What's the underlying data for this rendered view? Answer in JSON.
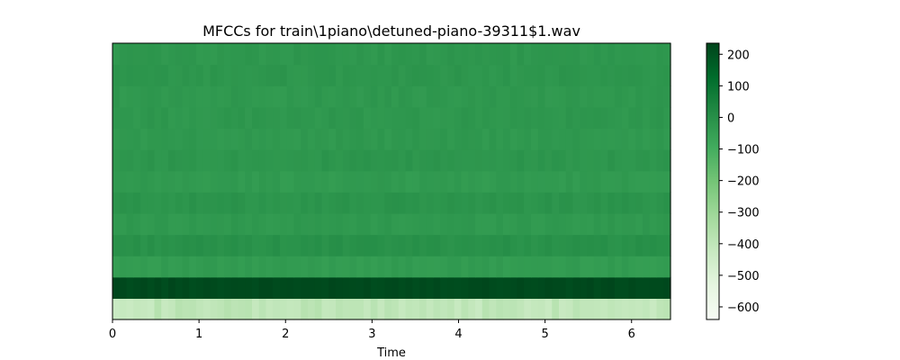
{
  "chart_data": {
    "type": "heatmap",
    "title": "MFCCs for train\\1piano\\detuned-piano-39311$1.wav",
    "xlabel": "Time",
    "ylabel": "",
    "x_ticks": [
      0,
      1,
      2,
      3,
      4,
      5,
      6
    ],
    "x_tick_labels": [
      "0",
      "1",
      "2",
      "3",
      "4",
      "5",
      "6"
    ],
    "xlim": [
      0,
      6.45
    ],
    "n_coefficients": 13,
    "colormap": "Greens",
    "colorbar": {
      "vmin": -640,
      "vmax": 235,
      "ticks": [
        200,
        100,
        0,
        -100,
        -200,
        -300,
        -400,
        -500,
        -600
      ],
      "tick_labels": [
        "200",
        "100",
        "0",
        "−100",
        "−200",
        "−300",
        "−400",
        "−500",
        "−600"
      ]
    },
    "coefficient_values": [
      {
        "coefficient": 1,
        "value": -400
      },
      {
        "coefficient": 2,
        "value": 220
      },
      {
        "coefficient": 3,
        "value": -40
      },
      {
        "coefficient": 4,
        "value": -5
      },
      {
        "coefficient": 5,
        "value": -30
      },
      {
        "coefficient": 6,
        "value": -15
      },
      {
        "coefficient": 7,
        "value": -35
      },
      {
        "coefficient": 8,
        "value": -20
      },
      {
        "coefficient": 9,
        "value": -30
      },
      {
        "coefficient": 10,
        "value": -25
      },
      {
        "coefficient": 11,
        "value": -28
      },
      {
        "coefficient": 12,
        "value": -22
      },
      {
        "coefficient": 13,
        "value": -25
      }
    ]
  }
}
